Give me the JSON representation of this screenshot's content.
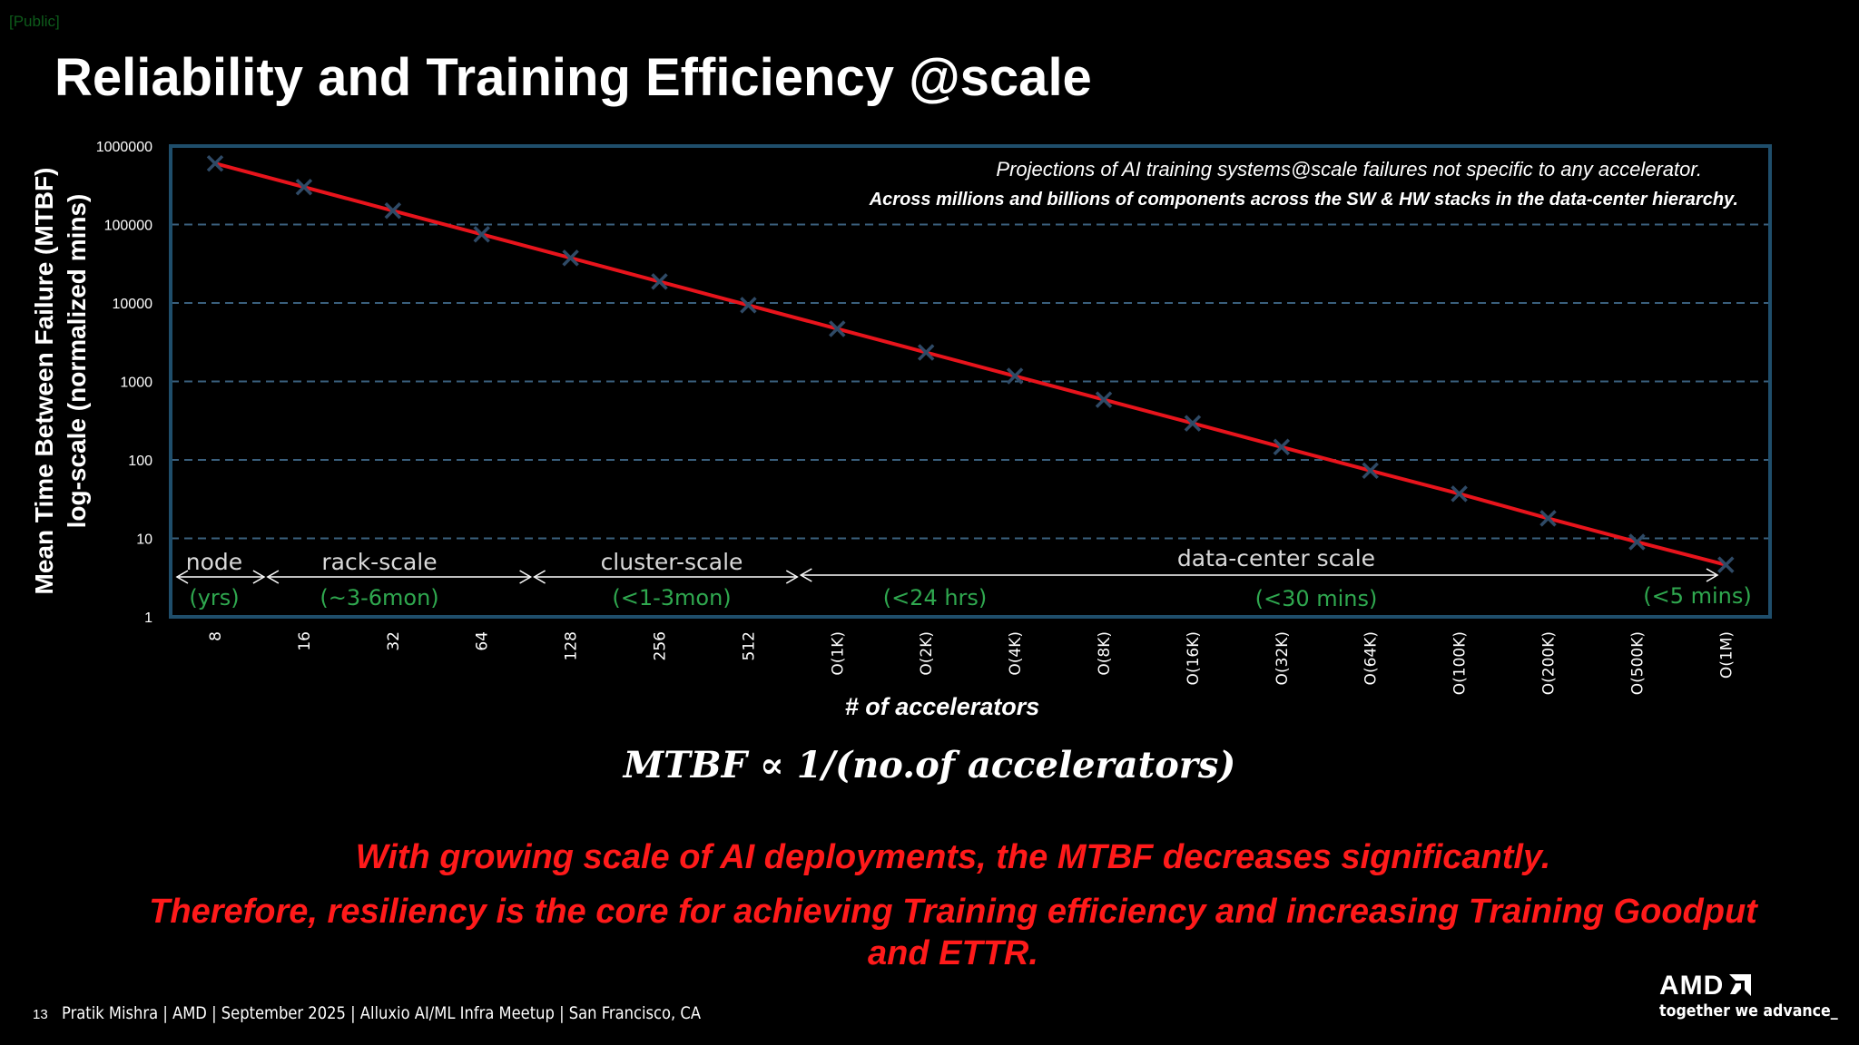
{
  "tag": "[Public]",
  "title": "Reliability and Training Efficiency @scale",
  "chart_data": {
    "type": "line",
    "title": "",
    "ylabel_line1": "Mean Time Between Failure (MTBF)",
    "ylabel_line2": "log-scale (normalized mins)",
    "xlabel": "# of accelerators",
    "yscale": "log",
    "ylim": [
      1,
      1000000
    ],
    "yticks": [
      "1",
      "10",
      "100",
      "1000",
      "10000",
      "100000",
      "1000000"
    ],
    "categories": [
      "8",
      "16",
      "32",
      "64",
      "128",
      "256",
      "512",
      "O(1K)",
      "O(2K)",
      "O(4K)",
      "O(8K)",
      "O(16K)",
      "O(32K)",
      "O(64K)",
      "O(100K)",
      "O(200K)",
      "O(500K)",
      "O(1M)"
    ],
    "series": [
      {
        "name": "MTBF",
        "values": [
          600000,
          300000,
          150000,
          75000,
          37500,
          18750,
          9375,
          4688,
          2344,
          1172,
          586,
          293,
          146,
          73,
          37,
          18,
          9,
          4.6
        ]
      }
    ],
    "annotations": [
      "Projections of AI training systems@scale failures not specific to any accelerator.",
      "Across millions and billions of components across the SW & HW stacks in the data-center hierarchy."
    ],
    "regions": [
      {
        "name": "node",
        "duration": "(yrs)",
        "from": "8",
        "to": "16"
      },
      {
        "name": "rack-scale",
        "duration": "(~3-6mon)",
        "from": "16",
        "to": "128"
      },
      {
        "name": "cluster-scale",
        "duration": "(<1-3mon)",
        "from": "128",
        "to": "O(1K)"
      },
      {
        "name": "data-center scale",
        "duration": "(<24 hrs)",
        "from": "O(1K)",
        "to": "O(1M)"
      }
    ],
    "extra_durations": [
      "(<30 mins)",
      "(<5 mins)"
    ],
    "colors": {
      "line": "#e8141c",
      "marker": "#2f4a66",
      "frame": "#1f4e6b",
      "grid": "#3a5f7d",
      "duration": "#2fa84f",
      "region_label": "#d9d9d9"
    }
  },
  "formula": "MTBF  ∝ 1/(no.of accelerators)",
  "message_line1": "With growing scale of AI deployments, the MTBF decreases significantly.",
  "message_line2": "Therefore, resiliency is the core for achieving Training efficiency and increasing Training Goodput and ETTR.",
  "page_number": "13",
  "footer": "Pratik Mishra | AMD | September 2025 | Alluxio AI/ML Infra Meetup | San Francisco, CA",
  "logo": "AMD",
  "tagline": "together we advance_"
}
